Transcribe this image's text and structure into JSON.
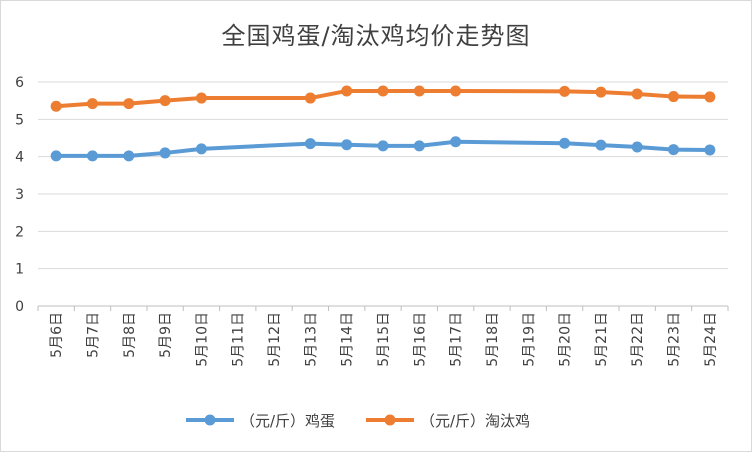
{
  "chart_data": {
    "type": "line",
    "title": "全国鸡蛋/淘汰鸡均价走势图",
    "categories": [
      "5月6日",
      "5月7日",
      "5月8日",
      "5月9日",
      "5月10日",
      "5月11日",
      "5月12日",
      "5月13日",
      "5月14日",
      "5月15日",
      "5月16日",
      "5月17日",
      "5月18日",
      "5月19日",
      "5月20日",
      "5月21日",
      "5月22日",
      "5月23日",
      "5月24日"
    ],
    "ylim": [
      0,
      6
    ],
    "yticks": [
      "0",
      "1",
      "2",
      "3",
      "4",
      "5",
      "6"
    ],
    "grid": true,
    "legend_position": "bottom",
    "series": [
      {
        "name": "（元/斤）鸡蛋",
        "color": "#5b9bd5",
        "values": [
          4.02,
          4.02,
          4.02,
          4.1,
          4.21,
          null,
          null,
          4.35,
          4.32,
          4.29,
          4.29,
          4.4,
          null,
          null,
          4.36,
          4.31,
          4.26,
          4.19,
          4.18
        ]
      },
      {
        "name": "（元/斤）淘汰鸡",
        "color": "#ed7d31",
        "values": [
          5.35,
          5.42,
          5.42,
          5.5,
          5.57,
          null,
          null,
          5.57,
          5.76,
          5.76,
          5.76,
          5.76,
          null,
          null,
          5.75,
          5.73,
          5.68,
          5.61,
          5.6
        ]
      }
    ]
  }
}
